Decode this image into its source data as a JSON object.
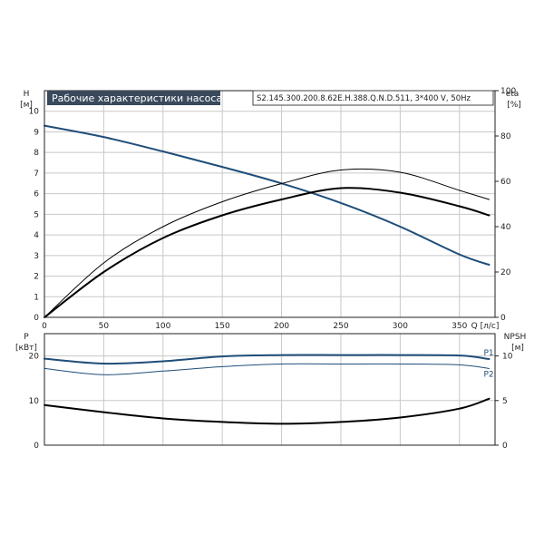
{
  "chart_data": [
    {
      "type": "line",
      "title": "Рабочие характеристики насоса",
      "subtitle": "S2.145.300.200.8.62E.H.388.Q.N.D.511, 3*400 V, 50Hz",
      "xlabel": "Q [л/с]",
      "ylabel": "H",
      "ylabel_unit": "[м]",
      "y2label": "eta",
      "y2label_unit": "[%]",
      "xlim": [
        0,
        380
      ],
      "ylim": [
        0,
        11
      ],
      "y2lim": [
        0,
        100
      ],
      "xticks": [
        "0",
        "50",
        "100",
        "150",
        "200",
        "250",
        "300",
        "350"
      ],
      "yticks": [
        "0",
        "1",
        "2",
        "3",
        "4",
        "5",
        "6",
        "7",
        "8",
        "9",
        "10"
      ],
      "y2ticks": [
        "0",
        "20",
        "40",
        "60",
        "80",
        "100"
      ],
      "grid": true,
      "series": [
        {
          "axis": "left",
          "color": "#1f4e79",
          "width": 2,
          "points": [
            [
              0,
              9.3
            ],
            [
              50,
              8.75
            ],
            [
              100,
              8.05
            ],
            [
              150,
              7.3
            ],
            [
              200,
              6.5
            ],
            [
              250,
              5.55
            ],
            [
              300,
              4.4
            ],
            [
              350,
              3.05
            ],
            [
              375,
              2.55
            ]
          ]
        },
        {
          "axis": "right",
          "color": "#000000",
          "width": 1,
          "points": [
            [
              0,
              0
            ],
            [
              50,
              24
            ],
            [
              100,
              40
            ],
            [
              150,
              51
            ],
            [
              200,
              59
            ],
            [
              250,
              65
            ],
            [
              300,
              64
            ],
            [
              350,
              56
            ],
            [
              375,
              52
            ]
          ]
        },
        {
          "axis": "right",
          "color": "#000000",
          "width": 2,
          "points": [
            [
              0,
              0
            ],
            [
              50,
              20
            ],
            [
              100,
              35
            ],
            [
              150,
              45
            ],
            [
              200,
              52
            ],
            [
              250,
              57
            ],
            [
              300,
              55
            ],
            [
              350,
              49
            ],
            [
              375,
              45
            ]
          ]
        }
      ]
    },
    {
      "type": "line",
      "xlim": [
        0,
        380
      ],
      "ylabel": "P",
      "ylabel_unit": "[кВт]",
      "y2label": "NPSH",
      "y2label_unit": "[м]",
      "ylim": [
        0,
        25
      ],
      "y2lim": [
        0,
        12.5
      ],
      "yticks": [
        "0",
        "10",
        "20"
      ],
      "y2ticks": [
        "0",
        "5",
        "10"
      ],
      "grid": true,
      "series": [
        {
          "name": "P1",
          "axis": "left",
          "color": "#1f4e79",
          "width": 2,
          "points": [
            [
              0,
              19.4
            ],
            [
              50,
              18.3
            ],
            [
              100,
              18.8
            ],
            [
              150,
              19.9
            ],
            [
              200,
              20.2
            ],
            [
              250,
              20.2
            ],
            [
              300,
              20.2
            ],
            [
              350,
              20.1
            ],
            [
              375,
              19.3
            ]
          ]
        },
        {
          "name": "P2",
          "axis": "left",
          "color": "#1f4e79",
          "width": 1,
          "points": [
            [
              0,
              17.2
            ],
            [
              50,
              15.8
            ],
            [
              100,
              16.6
            ],
            [
              150,
              17.6
            ],
            [
              200,
              18.2
            ],
            [
              250,
              18.2
            ],
            [
              300,
              18.2
            ],
            [
              350,
              18.0
            ],
            [
              375,
              17.2
            ]
          ]
        },
        {
          "axis": "right",
          "color": "#000000",
          "width": 2,
          "points": [
            [
              0,
              4.5
            ],
            [
              50,
              3.7
            ],
            [
              100,
              3.0
            ],
            [
              150,
              2.6
            ],
            [
              200,
              2.4
            ],
            [
              250,
              2.6
            ],
            [
              300,
              3.1
            ],
            [
              350,
              4.1
            ],
            [
              375,
              5.2
            ]
          ]
        }
      ]
    }
  ]
}
